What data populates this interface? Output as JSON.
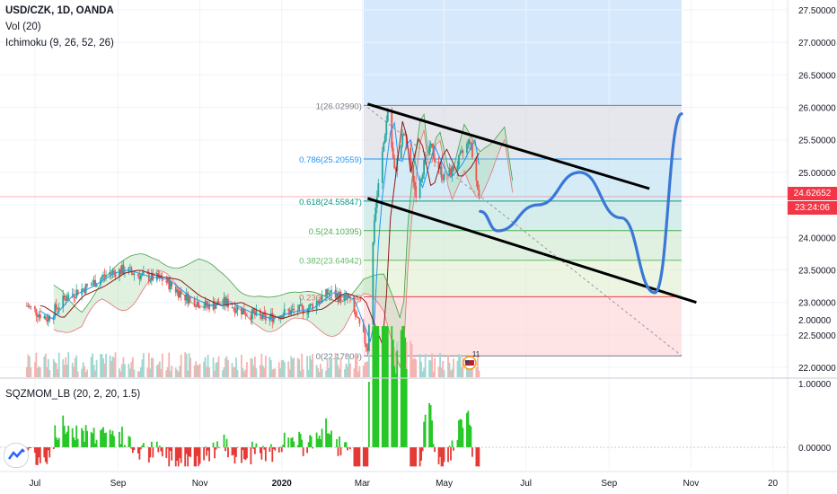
{
  "header": {
    "symbol": "USD/CZK, 1D, OANDA",
    "volume_indicator": "Vol (20)",
    "ichimoku_indicator": "Ichimoku (9, 26, 52, 26)"
  },
  "lower_pane": {
    "indicator": "SQZMOM_LB (20, 2, 20, 1.5)",
    "y_ticks": [
      {
        "value": 2.0,
        "label": "2.00000"
      },
      {
        "value": 1.0,
        "label": "1.00000"
      },
      {
        "value": 0.0,
        "label": "0.00000"
      }
    ]
  },
  "price_axis": {
    "ticks": [
      {
        "value": 27.5,
        "label": "27.50000"
      },
      {
        "value": 27.0,
        "label": "27.00000"
      },
      {
        "value": 26.5,
        "label": "26.50000"
      },
      {
        "value": 26.0,
        "label": "26.00000"
      },
      {
        "value": 25.5,
        "label": "25.50000"
      },
      {
        "value": 25.0,
        "label": "25.00000"
      },
      {
        "value": 24.5,
        "label": "24.50000"
      },
      {
        "value": 24.0,
        "label": "24.00000"
      },
      {
        "value": 23.5,
        "label": "23.50000"
      },
      {
        "value": 23.0,
        "label": "23.00000"
      },
      {
        "value": 22.5,
        "label": "22.50000"
      },
      {
        "value": 22.0,
        "label": "22.00000"
      }
    ],
    "current_price": "24.62652",
    "countdown": "23:24:06"
  },
  "time_axis": {
    "labels": [
      "Jul",
      "Sep",
      "Nov",
      "2020",
      "Mar",
      "May",
      "Jul",
      "Sep",
      "Nov",
      "20"
    ]
  },
  "fibonacci": {
    "levels": [
      {
        "ratio": 1,
        "price": 26.0299,
        "label": "1(26.02990)",
        "color": "#787b86"
      },
      {
        "ratio": 0.786,
        "price": 25.20559,
        "label": "0.786(25.20559)",
        "color": "#2196f3"
      },
      {
        "ratio": 0.618,
        "price": 24.55847,
        "label": "0.618(24.55847)",
        "color": "#089981"
      },
      {
        "ratio": 0.5,
        "price": 24.10395,
        "label": "0.5(24.10395)",
        "color": "#4caf50"
      },
      {
        "ratio": 0.382,
        "price": 23.64942,
        "label": "0.382(23.64942)",
        "color": "#66bb6a"
      },
      {
        "ratio": 0.236,
        "price": 23.08704,
        "label": "0.236(23.08704)",
        "color": "#f23645"
      },
      {
        "ratio": 0,
        "price": 22.178,
        "label": "0(22.17800)",
        "color": "#787b86"
      }
    ]
  },
  "chart_data": {
    "type": "line",
    "title": "USD/CZK, 1D, OANDA",
    "xlabel": "",
    "ylabel": "",
    "ylim": [
      21.85,
      27.65
    ],
    "x_ticks": [
      "Jul",
      "Sep",
      "Nov",
      "2020",
      "Mar",
      "May",
      "Jul",
      "Sep",
      "Nov",
      "20"
    ],
    "series": [
      {
        "name": "USD/CZK",
        "dates": [
          "2019-06-25",
          "2019-07-10",
          "2019-07-25",
          "2019-08-10",
          "2019-08-25",
          "2019-09-05",
          "2019-09-20",
          "2019-10-05",
          "2019-10-20",
          "2019-11-05",
          "2019-11-20",
          "2019-12-05",
          "2019-12-20",
          "2020-01-05",
          "2020-01-20",
          "2020-02-05",
          "2020-02-20",
          "2020-03-05",
          "2020-03-10",
          "2020-03-20",
          "2020-03-25",
          "2020-04-01",
          "2020-04-10",
          "2020-04-20",
          "2020-05-01",
          "2020-05-10",
          "2020-05-20",
          "2020-05-27"
        ],
        "values": [
          22.95,
          22.75,
          23.1,
          23.25,
          23.45,
          23.5,
          23.4,
          23.35,
          23.1,
          22.95,
          23.0,
          22.85,
          22.75,
          22.85,
          22.9,
          23.15,
          23.05,
          22.3,
          24.3,
          25.95,
          25.0,
          25.6,
          24.7,
          25.4,
          24.9,
          25.1,
          25.5,
          24.62
        ]
      },
      {
        "name": "Projection",
        "dates": [
          "2020-05-28",
          "2020-06-10",
          "2020-07-10",
          "2020-08-10",
          "2020-09-10",
          "2020-10-05",
          "2020-10-25"
        ],
        "values": [
          24.4,
          24.1,
          24.5,
          25.0,
          24.3,
          23.15,
          25.9
        ]
      }
    ],
    "trendlines": [
      {
        "name": "upper channel",
        "from": [
          "2020-03-05",
          26.05
        ],
        "to": [
          "2020-10-01",
          24.75
        ]
      },
      {
        "name": "lower channel",
        "from": [
          "2020-03-05",
          24.6
        ],
        "to": [
          "2020-11-05",
          23.0
        ]
      }
    ],
    "fib_box_range": [
      "2020-03-02",
      "2020-10-25"
    ],
    "current_price": 24.62652
  },
  "colors": {
    "upper_trend": "#000000",
    "projection": "#3a77d6",
    "candle_up": "#26a69a",
    "candle_down": "#ef5350",
    "ichimoku_cloud_up": "#a5d6a7",
    "ichimoku_cloud_down": "#ef9a9a",
    "momentum_up": "#26c826",
    "momentum_down": "#e53935",
    "forecast_box": "#cfe5fb",
    "price_label_bg": "#f23645"
  },
  "events": [
    {
      "label": "11",
      "icon": "us-flag-icon"
    }
  ]
}
